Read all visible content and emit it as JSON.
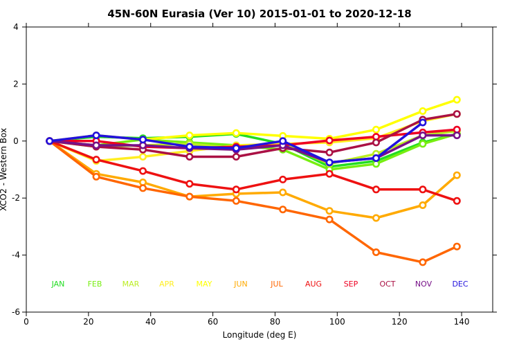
{
  "chart_data": {
    "type": "line",
    "title": "45N-60N Eurasia (Ver 10)   2015-01-01 to 2020-12-18",
    "xlabel": "Longitude (deg E)",
    "ylabel": "XCO2 - Western Box",
    "xlim": [
      0,
      150
    ],
    "ylim": [
      -6,
      4
    ],
    "xticks": [
      "0",
      "20",
      "40",
      "60",
      "80",
      "100",
      "120",
      "140"
    ],
    "yticks": [
      "-6",
      "-4",
      "-2",
      "0",
      "2",
      "4"
    ],
    "legend_placement": "bottom, inside plot, one row",
    "x": [
      7.5,
      22.5,
      37.5,
      52.5,
      67.5,
      82.5,
      97.5,
      112.5,
      127.5,
      138.5
    ],
    "series": [
      {
        "name": "JAN",
        "color": "#22dd22",
        "values": [
          0,
          0.15,
          0.1,
          0.15,
          0.25,
          -0.1,
          -0.9,
          -0.7,
          -0.05,
          0.25
        ]
      },
      {
        "name": "FEB",
        "color": "#77ee11",
        "values": [
          0,
          -0.15,
          0.05,
          -0.05,
          -0.15,
          -0.3,
          -1.0,
          -0.8,
          -0.1,
          0.25
        ]
      },
      {
        "name": "MAR",
        "color": "#bbee22",
        "values": [
          0,
          -0.2,
          -0.15,
          -0.1,
          -0.25,
          -0.1,
          -0.8,
          -0.45,
          0.2,
          0.35
        ]
      },
      {
        "name": "APR",
        "color": "#ffee22",
        "values": [
          0,
          -0.7,
          -0.55,
          -0.35,
          -0.15,
          -0.1,
          -0.05,
          0.1,
          0.7,
          0.95
        ]
      },
      {
        "name": "MAY",
        "color": "#ffff00",
        "values": [
          0,
          0.2,
          0.05,
          0.2,
          0.28,
          0.18,
          0.08,
          0.4,
          1.05,
          1.45
        ]
      },
      {
        "name": "JUN",
        "color": "#ffaa00",
        "values": [
          0,
          -1.15,
          -1.45,
          -1.95,
          -1.85,
          -1.8,
          -2.45,
          -2.7,
          -2.25,
          -1.2
        ]
      },
      {
        "name": "JUL",
        "color": "#ff6600",
        "values": [
          0,
          -1.25,
          -1.65,
          -1.95,
          -2.1,
          -2.4,
          -2.75,
          -3.9,
          -4.25,
          -3.7
        ]
      },
      {
        "name": "AUG",
        "color": "#ee1111",
        "values": [
          0,
          -0.65,
          -1.05,
          -1.5,
          -1.7,
          -1.35,
          -1.15,
          -1.7,
          -1.7,
          -2.1
        ]
      },
      {
        "name": "SEP",
        "color": "#ee0022",
        "values": [
          0,
          0.0,
          -0.2,
          -0.25,
          -0.2,
          -0.15,
          0.02,
          0.15,
          0.3,
          0.4
        ]
      },
      {
        "name": "OCT",
        "color": "#aa1144",
        "values": [
          0,
          -0.2,
          -0.3,
          -0.55,
          -0.55,
          -0.25,
          -0.4,
          -0.05,
          0.75,
          0.95
        ]
      },
      {
        "name": "NOV",
        "color": "#771188",
        "values": [
          0,
          -0.15,
          -0.15,
          -0.25,
          -0.3,
          -0.15,
          -0.75,
          -0.6,
          0.2,
          0.2
        ]
      },
      {
        "name": "DEC",
        "color": "#2211dd",
        "values": [
          0,
          0.2,
          0.05,
          -0.2,
          -0.25,
          0.0,
          -0.75,
          -0.6,
          0.65,
          null
        ]
      }
    ]
  }
}
